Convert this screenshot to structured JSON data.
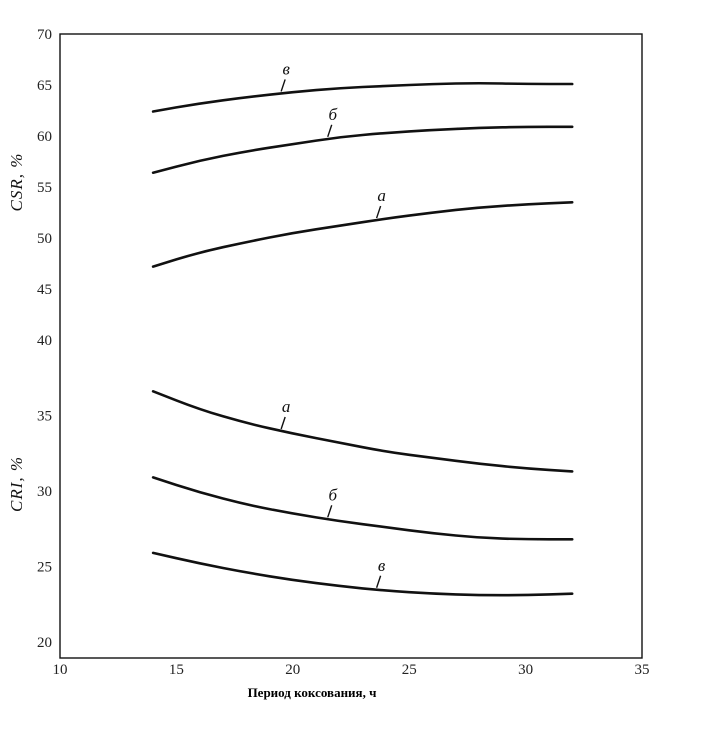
{
  "chart_data": [
    {
      "type": "line",
      "panel": "upper",
      "ylabel": "CSR, %",
      "ylim": [
        40,
        70
      ],
      "yticks": [
        "70",
        "65",
        "60",
        "55",
        "50",
        "45"
      ],
      "series": [
        {
          "name": "в",
          "x": [
            14,
            16,
            18,
            20,
            22,
            24,
            26,
            28,
            30,
            32
          ],
          "values": [
            62.4,
            63.2,
            63.8,
            64.3,
            64.7,
            64.9,
            65.1,
            65.2,
            65.1,
            65.1
          ]
        },
        {
          "name": "б",
          "x": [
            14,
            16,
            18,
            20,
            22,
            24,
            26,
            28,
            30,
            32
          ],
          "values": [
            56.4,
            57.6,
            58.5,
            59.2,
            59.9,
            60.3,
            60.6,
            60.8,
            60.9,
            60.9
          ]
        },
        {
          "name": "а",
          "x": [
            14,
            16,
            18,
            20,
            22,
            24,
            26,
            28,
            30,
            32
          ],
          "values": [
            47.2,
            48.6,
            49.6,
            50.5,
            51.2,
            51.9,
            52.5,
            53.0,
            53.3,
            53.5
          ]
        }
      ]
    },
    {
      "type": "line",
      "panel": "lower",
      "ylabel": "CRI, %",
      "ylim": [
        20,
        40
      ],
      "yticks": [
        "40",
        "35",
        "30",
        "25",
        "20"
      ],
      "xlabel": "Период коксования, ч",
      "xlim": [
        10,
        35
      ],
      "xticks": [
        "10",
        "15",
        "20",
        "25",
        "30",
        "35"
      ],
      "series": [
        {
          "name": "а",
          "x": [
            14,
            16,
            18,
            20,
            22,
            24,
            26,
            28,
            30,
            32
          ],
          "values": [
            36.6,
            35.4,
            34.5,
            33.8,
            33.2,
            32.6,
            32.2,
            31.8,
            31.5,
            31.3
          ]
        },
        {
          "name": "б",
          "x": [
            14,
            16,
            18,
            20,
            22,
            24,
            26,
            28,
            30,
            32
          ],
          "values": [
            30.9,
            29.9,
            29.1,
            28.5,
            28.0,
            27.6,
            27.2,
            26.9,
            26.8,
            26.8
          ]
        },
        {
          "name": "в",
          "x": [
            14,
            16,
            18,
            20,
            22,
            24,
            26,
            28,
            30,
            32
          ],
          "values": [
            25.9,
            25.2,
            24.6,
            24.1,
            23.7,
            23.4,
            23.2,
            23.1,
            23.1,
            23.2
          ]
        }
      ]
    }
  ]
}
